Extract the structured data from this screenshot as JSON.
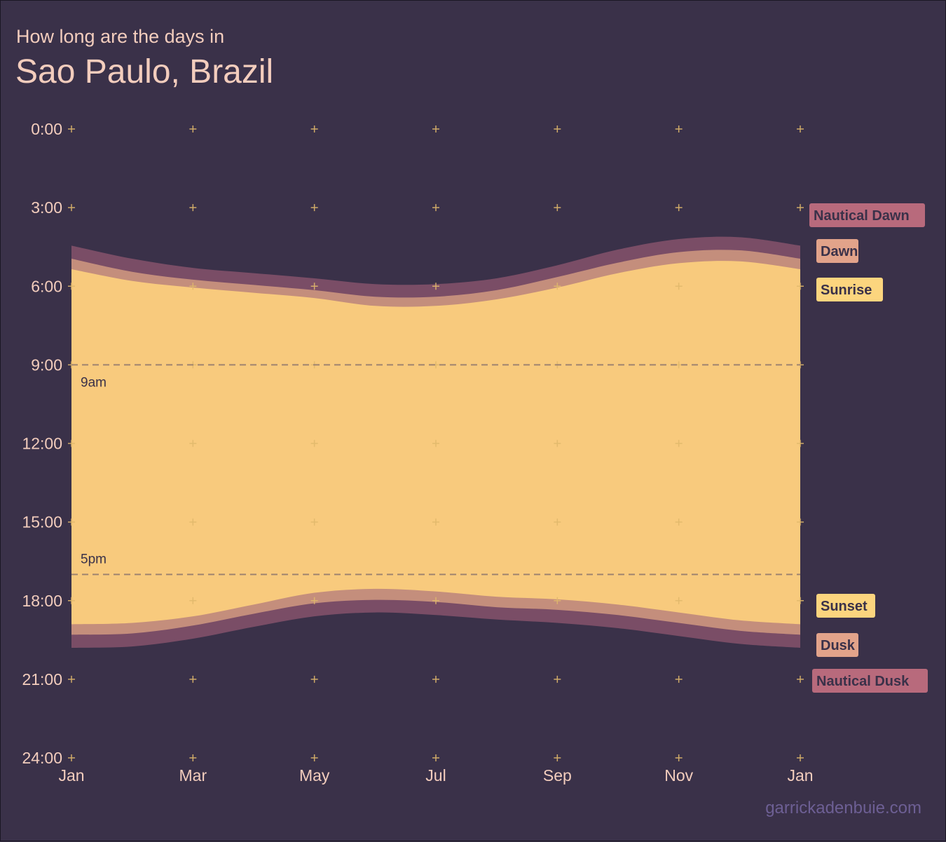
{
  "chart_data": {
    "type": "area",
    "subtitle": "How long are the days in",
    "title": "Sao Paulo, Brazil",
    "x_tick_labels": [
      "Jan",
      "Mar",
      "May",
      "Jul",
      "Sep",
      "Nov",
      "Jan"
    ],
    "y_tick_labels": [
      "0:00",
      "3:00",
      "6:00",
      "9:00",
      "12:00",
      "15:00",
      "18:00",
      "21:00",
      "24:00"
    ],
    "xlim_months": [
      1,
      13
    ],
    "ylim_hours": [
      0,
      24
    ],
    "y_reversed": true,
    "grid": "plus-markers",
    "months": [
      1,
      2,
      3,
      4,
      5,
      6,
      7,
      8,
      9,
      10,
      11,
      12,
      13
    ],
    "series": [
      {
        "name": "Nautical Dawn",
        "values": [
          4.45,
          4.95,
          5.3,
          5.5,
          5.7,
          5.92,
          5.92,
          5.7,
          5.2,
          4.6,
          4.2,
          4.13,
          4.45
        ]
      },
      {
        "name": "Dawn",
        "values": [
          4.95,
          5.45,
          5.75,
          5.95,
          6.15,
          6.4,
          6.4,
          6.15,
          5.65,
          5.1,
          4.7,
          4.63,
          4.95
        ]
      },
      {
        "name": "Sunrise",
        "values": [
          5.35,
          5.8,
          6.05,
          6.25,
          6.45,
          6.75,
          6.75,
          6.5,
          6.05,
          5.5,
          5.12,
          5.05,
          5.35
        ]
      },
      {
        "name": "Sunset",
        "values": [
          18.9,
          18.85,
          18.6,
          18.15,
          17.7,
          17.55,
          17.65,
          17.85,
          17.95,
          18.15,
          18.45,
          18.75,
          18.9
        ]
      },
      {
        "name": "Dusk",
        "values": [
          19.3,
          19.25,
          18.95,
          18.5,
          18.1,
          17.97,
          18.05,
          18.25,
          18.35,
          18.55,
          18.85,
          19.15,
          19.3
        ]
      },
      {
        "name": "Nautical Dusk",
        "values": [
          19.8,
          19.75,
          19.45,
          19.0,
          18.6,
          18.45,
          18.55,
          18.72,
          18.85,
          19.05,
          19.35,
          19.65,
          19.8
        ]
      }
    ],
    "reference_lines": [
      {
        "label": "9am",
        "hour": 9
      },
      {
        "label": "5pm",
        "hour": 17
      }
    ],
    "colors": {
      "background": "#3a3149",
      "nautical": "#7a4d66",
      "civil": "#c48e7c",
      "day": "#f8ca7d",
      "tick_marks": "#e0b86b",
      "axis_text": "#f3cdbd",
      "reference_line": "#9e8370",
      "reference_text": "#3a3149",
      "label_nautical": "#b86a7c",
      "label_civil": "#e2a38a",
      "label_day": "#fcd57e",
      "label_text": "#3a3149",
      "credit": "#6d5f94"
    }
  },
  "credit": "garrickadenbuie.com"
}
